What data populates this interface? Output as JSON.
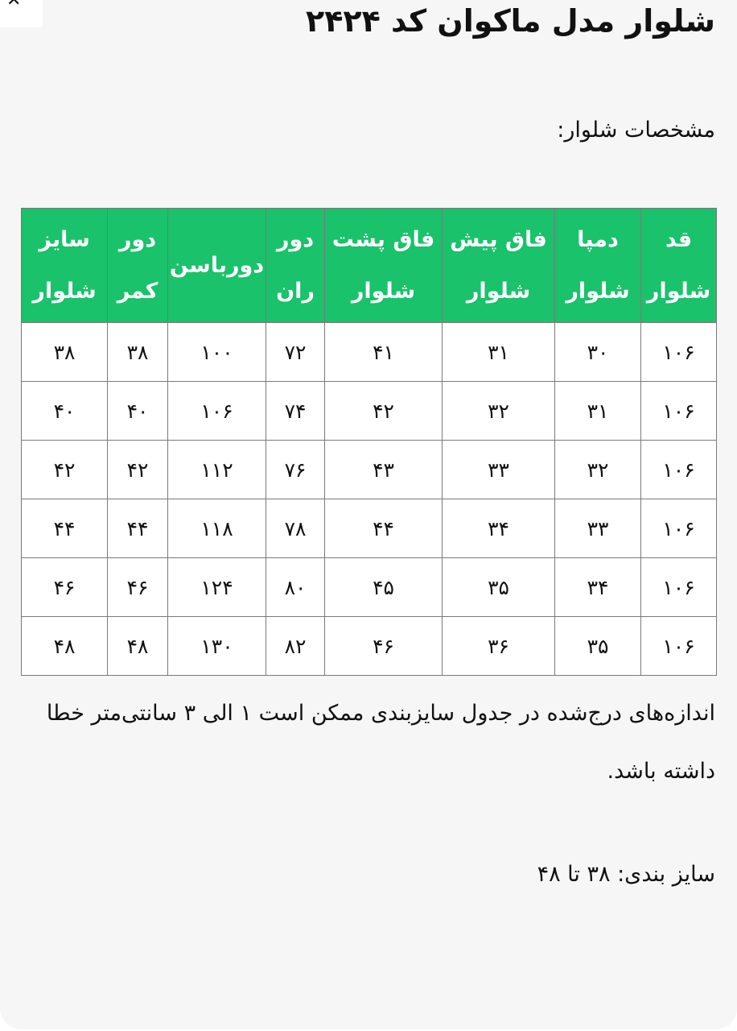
{
  "window": {
    "close_icon": "close-icon"
  },
  "title": "شلوار مدل ماکوان کد ۲۴۲۴",
  "spec_label": "مشخصات شلوار:",
  "table": {
    "header_color": "#19c26b",
    "headers": [
      "قد شلوار",
      "دمپا شلوار",
      "فاق پیش شلوار",
      "فاق پشت شلوار",
      "دور ران",
      "دورباسن",
      "دور کمر",
      "سایز شلوار"
    ],
    "rows": [
      [
        "۱۰۶",
        "۳۰",
        "۳۱",
        "۴۱",
        "۷۲",
        "۱۰۰",
        "۳۸",
        "۳۸"
      ],
      [
        "۱۰۶",
        "۳۱",
        "۳۲",
        "۴۲",
        "۷۴",
        "۱۰۶",
        "۴۰",
        "۴۰"
      ],
      [
        "۱۰۶",
        "۳۲",
        "۳۳",
        "۴۳",
        "۷۶",
        "۱۱۲",
        "۴۲",
        "۴۲"
      ],
      [
        "۱۰۶",
        "۳۳",
        "۳۴",
        "۴۴",
        "۷۸",
        "۱۱۸",
        "۴۴",
        "۴۴"
      ],
      [
        "۱۰۶",
        "۳۴",
        "۳۵",
        "۴۵",
        "۸۰",
        "۱۲۴",
        "۴۶",
        "۴۶"
      ],
      [
        "۱۰۶",
        "۳۵",
        "۳۶",
        "۴۶",
        "۸۲",
        "۱۳۰",
        "۴۸",
        "۴۸"
      ]
    ]
  },
  "note": "اندازه‌های درج‌شده در جدول سایزبندی ممکن است ۱ الی ۳ سانتی‌متر خطا داشته باشد.",
  "sizes": "سایز بندی: ۳۸ تا ۴۸"
}
